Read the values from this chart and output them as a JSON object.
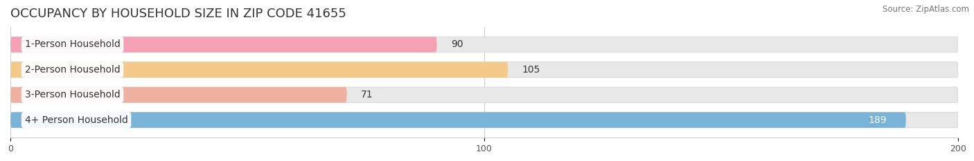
{
  "title": "OCCUPANCY BY HOUSEHOLD SIZE IN ZIP CODE 41655",
  "source": "Source: ZipAtlas.com",
  "categories": [
    "1-Person Household",
    "2-Person Household",
    "3-Person Household",
    "4+ Person Household"
  ],
  "values": [
    90,
    105,
    71,
    189
  ],
  "bar_colors": [
    "#f5a0b5",
    "#f5c98a",
    "#f0b0a0",
    "#7ab3d8"
  ],
  "bar_bg_color": "#e8e8e8",
  "value_inside": [
    false,
    false,
    false,
    true
  ],
  "xlim": [
    0,
    200
  ],
  "xticks": [
    0,
    100,
    200
  ],
  "background_color": "#ffffff",
  "title_fontsize": 13,
  "bar_height": 0.62,
  "value_label_color": "#333333",
  "value_label_inside_color": "#ffffff",
  "axis_label_fontsize": 10,
  "category_fontsize": 10,
  "grid_color": "#cccccc",
  "spine_color": "#cccccc"
}
